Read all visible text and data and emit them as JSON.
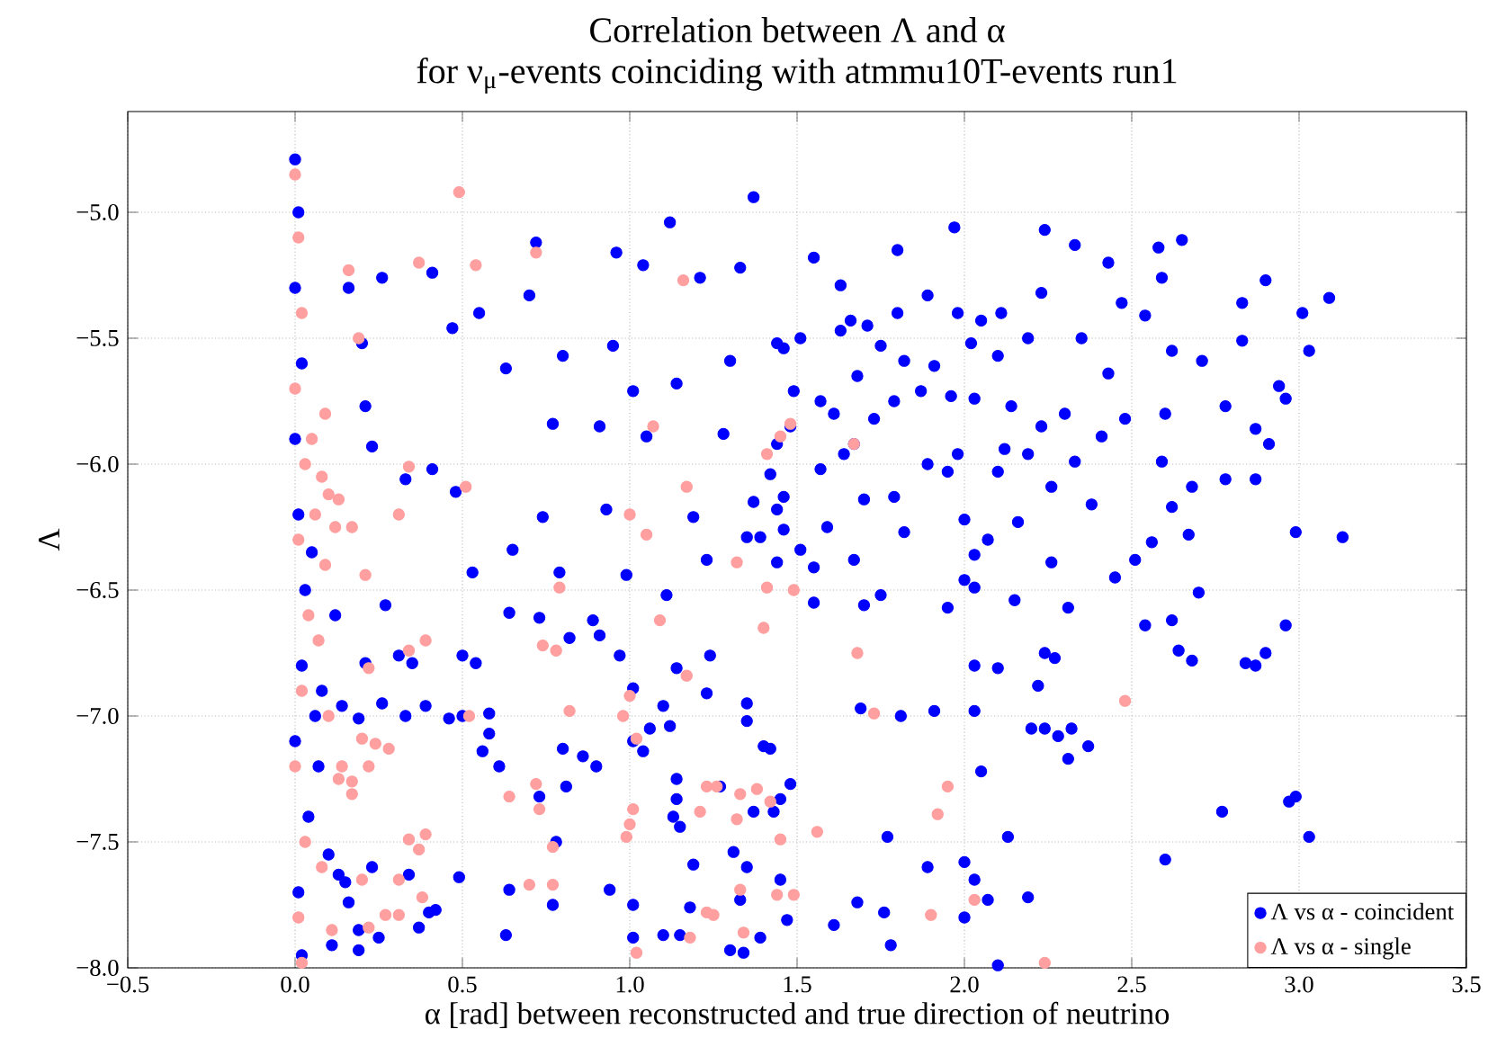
{
  "chart_data": {
    "type": "scatter",
    "title": "Correlation between Λ and α",
    "subtitle": "for ν$_{μ}$-events coinciding with atmmu10T-events run1",
    "xlabel": "α [rad] between reconstructed and true direction of neutrino",
    "ylabel": "Λ",
    "xlim": [
      -0.5,
      3.5
    ],
    "ylim": [
      -8.0,
      -4.6
    ],
    "xticks": [
      {
        "value": -0.5,
        "label": "−0.5"
      },
      {
        "value": 0,
        "label": "0.0"
      },
      {
        "value": 0.5,
        "label": "0.5"
      },
      {
        "value": 1,
        "label": "1.0"
      },
      {
        "value": 1.5,
        "label": "1.5"
      },
      {
        "value": 2,
        "label": "2.0"
      },
      {
        "value": 2.5,
        "label": "2.5"
      },
      {
        "value": 3,
        "label": "3.0"
      },
      {
        "value": 3.5,
        "label": "3.5"
      }
    ],
    "yticks": [
      {
        "value": -8,
        "label": "−8.0"
      },
      {
        "value": -7.5,
        "label": "−7.5"
      },
      {
        "value": -7,
        "label": "−7.0"
      },
      {
        "value": -6.5,
        "label": "−6.5"
      },
      {
        "value": -6,
        "label": "−6.0"
      },
      {
        "value": -5.5,
        "label": "−5.5"
      },
      {
        "value": -5,
        "label": "−5.0"
      }
    ],
    "grid": true,
    "legend": "bottom right",
    "marker": "circle",
    "series": [
      {
        "name": "Λ vs α - coincident",
        "color": "#0000ff",
        "x": [
          0.0,
          0.01,
          0.0,
          0.02,
          0.0,
          0.01,
          0.03,
          0.02,
          0.0,
          0.04,
          0.01,
          0.02,
          0.05,
          0.06,
          0.08,
          0.1,
          0.12,
          0.07,
          1.37,
          1.12,
          0.72,
          0.96,
          0.41,
          0.26,
          0.16,
          0.2,
          0.47,
          0.55,
          0.7,
          1.04,
          1.21,
          1.33,
          1.55,
          1.63,
          1.66,
          0.21,
          0.23,
          0.41,
          0.48,
          0.33,
          0.53,
          0.65,
          0.79,
          0.99,
          0.27,
          0.64,
          0.89,
          1.11,
          1.23,
          1.35,
          1.55,
          1.51,
          0.74,
          1.19,
          0.93,
          1.46,
          0.77,
          0.91,
          1.05,
          1.28,
          1.44,
          1.57,
          0.63,
          0.8,
          1.01,
          1.14,
          1.3,
          1.44,
          1.51,
          0.95,
          1.97,
          2.24,
          2.33,
          2.58,
          2.65,
          1.8,
          3.09,
          2.9,
          2.83,
          3.01,
          3.03,
          2.94,
          2.96,
          2.83,
          2.78,
          2.87,
          2.91,
          2.87,
          2.78,
          2.68,
          2.62,
          2.67,
          2.99,
          3.13,
          2.59,
          2.6,
          2.71,
          2.62,
          2.54,
          2.59,
          2.47,
          2.43,
          2.35,
          2.43,
          2.48,
          2.41,
          2.33,
          2.38,
          2.26,
          2.31,
          2.56,
          2.51,
          2.45,
          2.26,
          2.16,
          2.07,
          2.0,
          2.03,
          2.0,
          2.03,
          1.95,
          2.15,
          2.19,
          2.12,
          2.1,
          1.98,
          1.95,
          1.89,
          1.82,
          1.79,
          1.7,
          1.67,
          1.59,
          1.55,
          1.64,
          1.57,
          1.49,
          1.46,
          1.63,
          1.71,
          1.8,
          1.89,
          1.98,
          2.05,
          2.11,
          2.23,
          2.19,
          2.1,
          2.02,
          1.91,
          1.82,
          1.75,
          1.68,
          1.79,
          1.87,
          1.96,
          2.03,
          2.14,
          2.23,
          2.3,
          1.73,
          1.67,
          1.61,
          1.48,
          1.42,
          1.37,
          1.44,
          1.46,
          1.39,
          1.44,
          1.75,
          1.7,
          2.7,
          2.96,
          2.54,
          2.62,
          0.73,
          0.91,
          0.82,
          0.97,
          0.5,
          0.54,
          0.35,
          0.31,
          0.21,
          0.14,
          0.26,
          0.33,
          0.39,
          0.46,
          0.5,
          0.58,
          0.58,
          0.56,
          0.61,
          0.19,
          0.8,
          0.86,
          0.9,
          0.81,
          0.73,
          0.78,
          1.01,
          1.1,
          1.12,
          1.06,
          1.01,
          1.04,
          1.14,
          1.24,
          1.23,
          1.35,
          1.35,
          1.4,
          1.42,
          1.48,
          1.27,
          1.14,
          1.14,
          1.13,
          1.15,
          1.37,
          1.43,
          1.45,
          1.19,
          1.31,
          1.35,
          1.45,
          1.33,
          1.18,
          1.25,
          1.47,
          1.61,
          1.68,
          1.3,
          1.34,
          1.39,
          1.15,
          1.1,
          1.01,
          0.94,
          1.01,
          0.77,
          0.63,
          0.49,
          0.64,
          0.37,
          0.4,
          0.42,
          0.34,
          0.25,
          0.19,
          0.19,
          0.23,
          0.15,
          0.16,
          0.11,
          0.13,
          2.03,
          2.1,
          2.22,
          2.24,
          2.27,
          2.03,
          1.91,
          1.81,
          1.69,
          2.24,
          2.2,
          2.28,
          2.31,
          2.32,
          2.37,
          2.05,
          2.77,
          2.97,
          2.99,
          3.03,
          2.6,
          1.77,
          2.13,
          1.89,
          2.0,
          2.03,
          2.07,
          2.19,
          2.0,
          1.76,
          1.78,
          2.1,
          2.64,
          2.68,
          2.84,
          2.87,
          2.9
        ],
        "values": [
          -4.79,
          -5.0,
          -5.3,
          -5.6,
          -5.9,
          -6.2,
          -6.5,
          -6.8,
          -7.1,
          -7.4,
          -7.7,
          -7.95,
          -6.35,
          -7.0,
          -6.9,
          -7.55,
          -6.6,
          -7.2,
          -4.94,
          -5.04,
          -5.12,
          -5.16,
          -5.24,
          -5.26,
          -5.3,
          -5.52,
          -5.46,
          -5.4,
          -5.33,
          -5.21,
          -5.26,
          -5.22,
          -5.18,
          -5.29,
          -5.43,
          -5.77,
          -5.93,
          -6.02,
          -6.11,
          -6.06,
          -6.43,
          -6.34,
          -6.43,
          -6.44,
          -6.56,
          -6.59,
          -6.62,
          -6.52,
          -6.38,
          -6.29,
          -6.55,
          -6.34,
          -6.21,
          -6.21,
          -6.18,
          -6.13,
          -5.84,
          -5.85,
          -5.89,
          -5.88,
          -5.92,
          -5.75,
          -5.62,
          -5.57,
          -5.71,
          -5.68,
          -5.59,
          -5.52,
          -5.5,
          -5.53,
          -5.06,
          -5.07,
          -5.13,
          -5.14,
          -5.11,
          -5.15,
          -5.34,
          -5.27,
          -5.36,
          -5.4,
          -5.55,
          -5.69,
          -5.74,
          -5.51,
          -5.77,
          -5.86,
          -5.92,
          -6.06,
          -6.06,
          -6.09,
          -6.17,
          -6.28,
          -6.27,
          -6.29,
          -5.99,
          -5.8,
          -5.59,
          -5.55,
          -5.41,
          -5.26,
          -5.36,
          -5.2,
          -5.5,
          -5.64,
          -5.82,
          -5.89,
          -5.99,
          -6.16,
          -6.09,
          -6.57,
          -6.31,
          -6.38,
          -6.45,
          -6.39,
          -6.23,
          -6.3,
          -6.22,
          -6.36,
          -6.46,
          -6.49,
          -6.57,
          -6.54,
          -5.96,
          -5.94,
          -6.03,
          -5.96,
          -6.03,
          -6.0,
          -6.27,
          -6.13,
          -6.14,
          -6.38,
          -6.25,
          -6.41,
          -5.96,
          -6.02,
          -5.71,
          -5.54,
          -5.47,
          -5.45,
          -5.4,
          -5.33,
          -5.4,
          -5.43,
          -5.4,
          -5.32,
          -5.5,
          -5.57,
          -5.52,
          -5.61,
          -5.59,
          -5.53,
          -5.65,
          -5.75,
          -5.71,
          -5.73,
          -5.74,
          -5.77,
          -5.85,
          -5.8,
          -5.82,
          -5.92,
          -5.8,
          -5.85,
          -6.04,
          -6.15,
          -6.18,
          -6.26,
          -6.29,
          -6.39,
          -6.52,
          -6.56,
          -6.51,
          -6.64,
          -6.64,
          -6.62,
          -6.61,
          -6.68,
          -6.69,
          -6.76,
          -6.76,
          -6.79,
          -6.79,
          -6.76,
          -6.79,
          -6.96,
          -6.95,
          -7.0,
          -6.96,
          -7.01,
          -7.0,
          -6.99,
          -7.07,
          -7.14,
          -7.2,
          -7.01,
          -7.13,
          -7.16,
          -7.2,
          -7.28,
          -7.32,
          -7.5,
          -6.89,
          -6.96,
          -7.04,
          -7.05,
          -7.1,
          -7.14,
          -6.81,
          -6.76,
          -6.91,
          -6.95,
          -7.02,
          -7.12,
          -7.13,
          -7.27,
          -7.28,
          -7.25,
          -7.33,
          -7.4,
          -7.44,
          -7.38,
          -7.38,
          -7.33,
          -7.59,
          -7.54,
          -7.6,
          -7.65,
          -7.73,
          -7.76,
          null,
          -7.81,
          -7.83,
          -7.74,
          -7.93,
          -7.94,
          -7.88,
          -7.87,
          -7.87,
          -7.88,
          -7.69,
          -7.75,
          -7.75,
          -7.87,
          -7.64,
          -7.69,
          -7.84,
          -7.78,
          -7.77,
          -7.63,
          -7.88,
          -7.85,
          -7.93,
          -7.6,
          -7.66,
          -7.74,
          -7.91,
          -7.63,
          -6.8,
          -6.81,
          -6.88,
          -6.75,
          -6.77,
          -6.98,
          -6.98,
          -7.0,
          -6.97,
          -7.05,
          -7.05,
          -7.08,
          -7.17,
          -7.05,
          -7.12,
          -7.22,
          -7.38,
          -7.34,
          -7.32,
          -7.48,
          -7.57,
          -7.48,
          -7.48,
          -7.6,
          -7.58,
          -7.65,
          -7.73,
          -7.72,
          -7.8,
          -7.78,
          -7.91,
          -7.99,
          -6.74,
          -6.78,
          -6.79,
          -6.8,
          -6.75
        ]
      },
      {
        "name": "Λ vs α - single",
        "color": "#ff9f9f",
        "x": [
          0.0,
          0.01,
          0.02,
          0.0,
          0.03,
          0.01,
          0.04,
          0.02,
          0.0,
          0.03,
          0.01,
          0.02,
          0.05,
          0.06,
          0.08,
          0.1,
          0.12,
          0.09,
          0.07,
          0.1,
          0.13,
          0.08,
          0.11,
          0.49,
          0.72,
          0.37,
          0.16,
          0.54,
          0.19,
          1.16,
          0.09,
          0.34,
          0.51,
          0.31,
          1.17,
          1.0,
          1.05,
          0.79,
          0.21,
          1.09,
          1.45,
          1.32,
          1.41,
          1.49,
          1.07,
          0.13,
          0.17,
          1.41,
          1.48,
          1.67,
          0.2,
          0.24,
          0.28,
          0.14,
          0.22,
          0.17,
          0.17,
          0.39,
          0.34,
          0.22,
          0.52,
          0.74,
          0.78,
          0.82,
          0.98,
          1.0,
          1.02,
          1.17,
          1.23,
          1.26,
          1.21,
          1.33,
          1.38,
          1.42,
          1.32,
          1.45,
          1.56,
          0.72,
          0.73,
          0.64,
          1.01,
          1.0,
          0.99,
          0.77,
          0.39,
          0.34,
          0.37,
          0.2,
          0.31,
          0.38,
          0.7,
          0.77,
          0.27,
          0.31,
          0.22,
          1.02,
          1.18,
          1.25,
          1.34,
          1.49,
          1.33,
          1.23,
          1.4,
          1.68,
          1.73,
          2.48,
          1.95,
          1.92,
          2.03,
          1.9,
          2.24,
          1.44
        ],
        "values": [
          -4.85,
          -5.1,
          -5.4,
          -5.7,
          -6.0,
          -6.3,
          -6.6,
          -6.9,
          -7.2,
          -7.5,
          -7.8,
          -7.98,
          -5.9,
          -6.2,
          -6.05,
          -6.12,
          -6.25,
          -6.4,
          -6.7,
          -7.0,
          -7.25,
          -7.6,
          -7.85,
          -4.92,
          -5.16,
          -5.2,
          -5.23,
          -5.21,
          -5.5,
          -5.27,
          -5.8,
          -6.01,
          -6.09,
          -6.2,
          -6.09,
          -6.2,
          -6.28,
          -6.49,
          -6.44,
          -6.62,
          -5.89,
          -6.39,
          -6.49,
          -6.5,
          -5.85,
          -6.14,
          -6.25,
          -5.96,
          -5.84,
          -5.92,
          -7.09,
          -7.11,
          -7.13,
          -7.2,
          -7.2,
          -7.26,
          -7.31,
          -6.7,
          -6.74,
          -6.81,
          -7.0,
          -6.72,
          -6.74,
          -6.98,
          -7.0,
          -6.92,
          -7.09,
          -6.84,
          -7.28,
          -7.28,
          -7.38,
          -7.31,
          -7.29,
          -7.34,
          -7.41,
          -7.49,
          -7.46,
          -7.27,
          -7.37,
          -7.32,
          -7.37,
          -7.43,
          -7.48,
          -7.52,
          -7.47,
          -7.49,
          -7.53,
          -7.65,
          -7.65,
          -7.72,
          -7.67,
          -7.67,
          -7.79,
          -7.79,
          -7.84,
          -7.94,
          -7.88,
          -7.79,
          -7.86,
          -7.71,
          -7.69,
          -7.78,
          -6.65,
          -6.75,
          -6.99,
          -6.94,
          -7.28,
          -7.39,
          -7.73,
          -7.79,
          -7.98,
          -7.71
        ]
      }
    ]
  }
}
